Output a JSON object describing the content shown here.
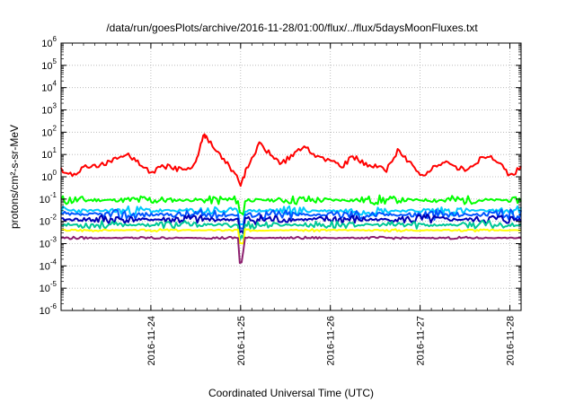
{
  "chart_data": {
    "type": "line",
    "title": "/data/run/goesPlots/archive/2016-11-28/01:00/flux/../flux/5daysMoonFluxes.txt",
    "xlabel": "Coordinated Universal Time (UTC)",
    "ylabel": "protons/cm²-s-sr-MeV",
    "y_scale": "log",
    "ylim": [
      1e-06,
      1000000.0
    ],
    "xlim": [
      "2016-11-23T00:00",
      "2016-11-28T03:00"
    ],
    "x_ticks": [
      "2016-11-24",
      "2016-11-25",
      "2016-11-26",
      "2016-11-27",
      "2016-11-28"
    ],
    "y_tick_exponents": [
      -6,
      -5,
      -4,
      -3,
      -2,
      -1,
      0,
      1,
      2,
      3,
      4,
      5,
      6
    ],
    "grid": true,
    "series": [
      {
        "color": "#ff0000",
        "x": [
          "2016-11-23T00:00",
          "2016-11-23T03:00",
          "2016-11-23T06:00",
          "2016-11-23T09:00",
          "2016-11-23T12:00",
          "2016-11-23T15:00",
          "2016-11-23T18:00",
          "2016-11-23T21:00",
          "2016-11-24T00:00",
          "2016-11-24T03:00",
          "2016-11-24T06:00",
          "2016-11-24T09:00",
          "2016-11-24T12:00",
          "2016-11-24T14:00",
          "2016-11-24T15:00",
          "2016-11-24T18:00",
          "2016-11-24T21:00",
          "2016-11-25T00:00",
          "2016-11-25T02:00",
          "2016-11-25T05:00",
          "2016-11-25T08:00",
          "2016-11-25T11:00",
          "2016-11-25T14:00",
          "2016-11-25T17:00",
          "2016-11-25T20:00",
          "2016-11-26T00:00",
          "2016-11-26T03:00",
          "2016-11-26T06:00",
          "2016-11-26T09:00",
          "2016-11-26T12:00",
          "2016-11-26T15:00",
          "2016-11-26T18:00",
          "2016-11-26T21:00",
          "2016-11-27T00:00",
          "2016-11-27T03:00",
          "2016-11-27T06:00",
          "2016-11-27T09:00",
          "2016-11-27T12:00",
          "2016-11-27T15:00",
          "2016-11-27T18:00",
          "2016-11-27T21:00",
          "2016-11-28T00:00",
          "2016-11-28T03:00"
        ],
        "y": [
          2,
          1.2,
          2.5,
          3,
          4,
          6,
          10,
          4,
          1.5,
          3,
          2.5,
          2,
          4,
          80,
          50,
          10,
          3,
          0.5,
          3,
          30,
          10,
          4,
          10,
          20,
          10,
          5,
          3,
          8,
          4,
          3,
          2,
          15,
          5,
          1,
          2,
          5,
          3,
          2,
          5,
          8,
          5,
          1,
          3
        ]
      },
      {
        "color": "#00ff00",
        "base": 0.09,
        "noise": 0.45,
        "seed": 11
      },
      {
        "color": "#00c8ff",
        "base": 0.03,
        "noise": 0.45,
        "seed": 23
      },
      {
        "color": "#0055ff",
        "base": 0.02,
        "noise": 0.5,
        "seed": 37
      },
      {
        "color": "#0000b4",
        "base": 0.012,
        "noise": 0.5,
        "seed": 41
      },
      {
        "color": "#00c896",
        "base": 0.007,
        "noise": 0.4,
        "seed": 53
      },
      {
        "color": "#ffff00",
        "base": 0.004,
        "noise": 0.12,
        "seed": 67
      },
      {
        "color": "#8c1e6e",
        "base": 0.0018,
        "noise": 0.12,
        "seed": 79
      }
    ]
  }
}
